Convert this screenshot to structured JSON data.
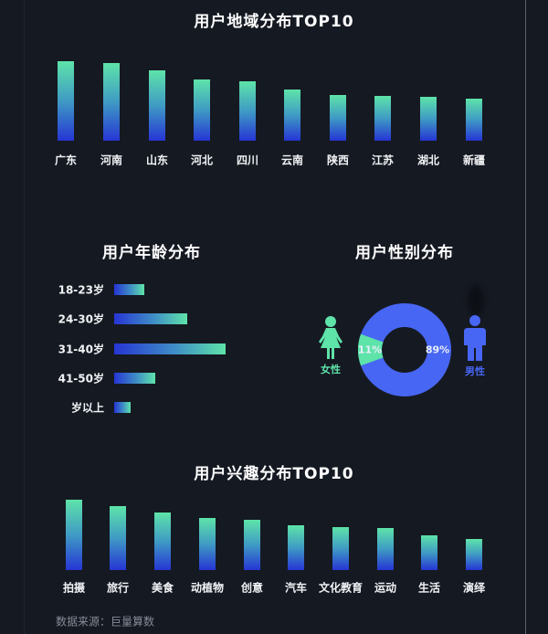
{
  "region": {
    "title": "用户地域分布TOP10",
    "items": [
      {
        "label": "广东",
        "value": 87
      },
      {
        "label": "河南",
        "value": 85
      },
      {
        "label": "山东",
        "value": 77
      },
      {
        "label": "河北",
        "value": 67
      },
      {
        "label": "四川",
        "value": 65
      },
      {
        "label": "云南",
        "value": 56
      },
      {
        "label": "陕西",
        "value": 50
      },
      {
        "label": "江苏",
        "value": 49
      },
      {
        "label": "湖北",
        "value": 48
      },
      {
        "label": "新疆",
        "value": 46
      }
    ]
  },
  "age": {
    "title": "用户年龄分布",
    "items": [
      {
        "label": "18-23岁",
        "value": 11
      },
      {
        "label": "24-30岁",
        "value": 27
      },
      {
        "label": "31-40岁",
        "value": 41
      },
      {
        "label": "41-50岁",
        "value": 15
      },
      {
        "label": "岁以上",
        "value": 6
      }
    ]
  },
  "gender": {
    "title": "用户性别分布",
    "female": {
      "label": "女性",
      "percent_text": "11%",
      "value": 11,
      "color": "#5ee3a9"
    },
    "male": {
      "label": "男性",
      "percent_text": "89%",
      "value": 89,
      "color": "#4766f3"
    }
  },
  "interest": {
    "title": "用户兴趣分布TOP10",
    "items": [
      {
        "label": "拍摄",
        "value": 77
      },
      {
        "label": "旅行",
        "value": 70
      },
      {
        "label": "美食",
        "value": 63
      },
      {
        "label": "动植物",
        "value": 57
      },
      {
        "label": "创意",
        "value": 55
      },
      {
        "label": "汽车",
        "value": 49
      },
      {
        "label": "文化教育",
        "value": 47
      },
      {
        "label": "运动",
        "value": 46
      },
      {
        "label": "生活",
        "value": 38
      },
      {
        "label": "演绎",
        "value": 34
      }
    ]
  },
  "footer": {
    "source": "数据来源：巨量算数"
  },
  "colors": {
    "background": "#151922",
    "bar_top": "#5ee3a9",
    "bar_bottom": "#2635d4",
    "female": "#5ee3a9",
    "male": "#4766f3"
  },
  "chart_data": [
    {
      "type": "bar",
      "title": "用户地域分布TOP10",
      "categories": [
        "广东",
        "河南",
        "山东",
        "河北",
        "四川",
        "云南",
        "陕西",
        "江苏",
        "湖北",
        "新疆"
      ],
      "values": [
        87,
        85,
        77,
        67,
        65,
        56,
        50,
        49,
        48,
        46
      ],
      "xlabel": "",
      "ylabel": "",
      "grid": false,
      "note": "relative bar heights, no axis shown"
    },
    {
      "type": "bar",
      "orientation": "horizontal",
      "title": "用户年龄分布",
      "categories": [
        "18-23岁",
        "24-30岁",
        "31-40岁",
        "41-50岁",
        "岁以上"
      ],
      "values": [
        11,
        27,
        41,
        15,
        6
      ],
      "xlabel": "",
      "ylabel": "",
      "grid": false,
      "note": "relative bar lengths, no axis shown"
    },
    {
      "type": "pie",
      "subtype": "donut",
      "title": "用户性别分布",
      "categories": [
        "女性",
        "男性"
      ],
      "values": [
        11,
        89
      ],
      "labels": [
        "11%",
        "89%"
      ]
    },
    {
      "type": "bar",
      "title": "用户兴趣分布TOP10",
      "categories": [
        "拍摄",
        "旅行",
        "美食",
        "动植物",
        "创意",
        "汽车",
        "文化教育",
        "运动",
        "生活",
        "演绎"
      ],
      "values": [
        77,
        70,
        63,
        57,
        55,
        49,
        47,
        46,
        38,
        34
      ],
      "xlabel": "",
      "ylabel": "",
      "grid": false,
      "note": "relative bar heights, no axis shown"
    }
  ]
}
